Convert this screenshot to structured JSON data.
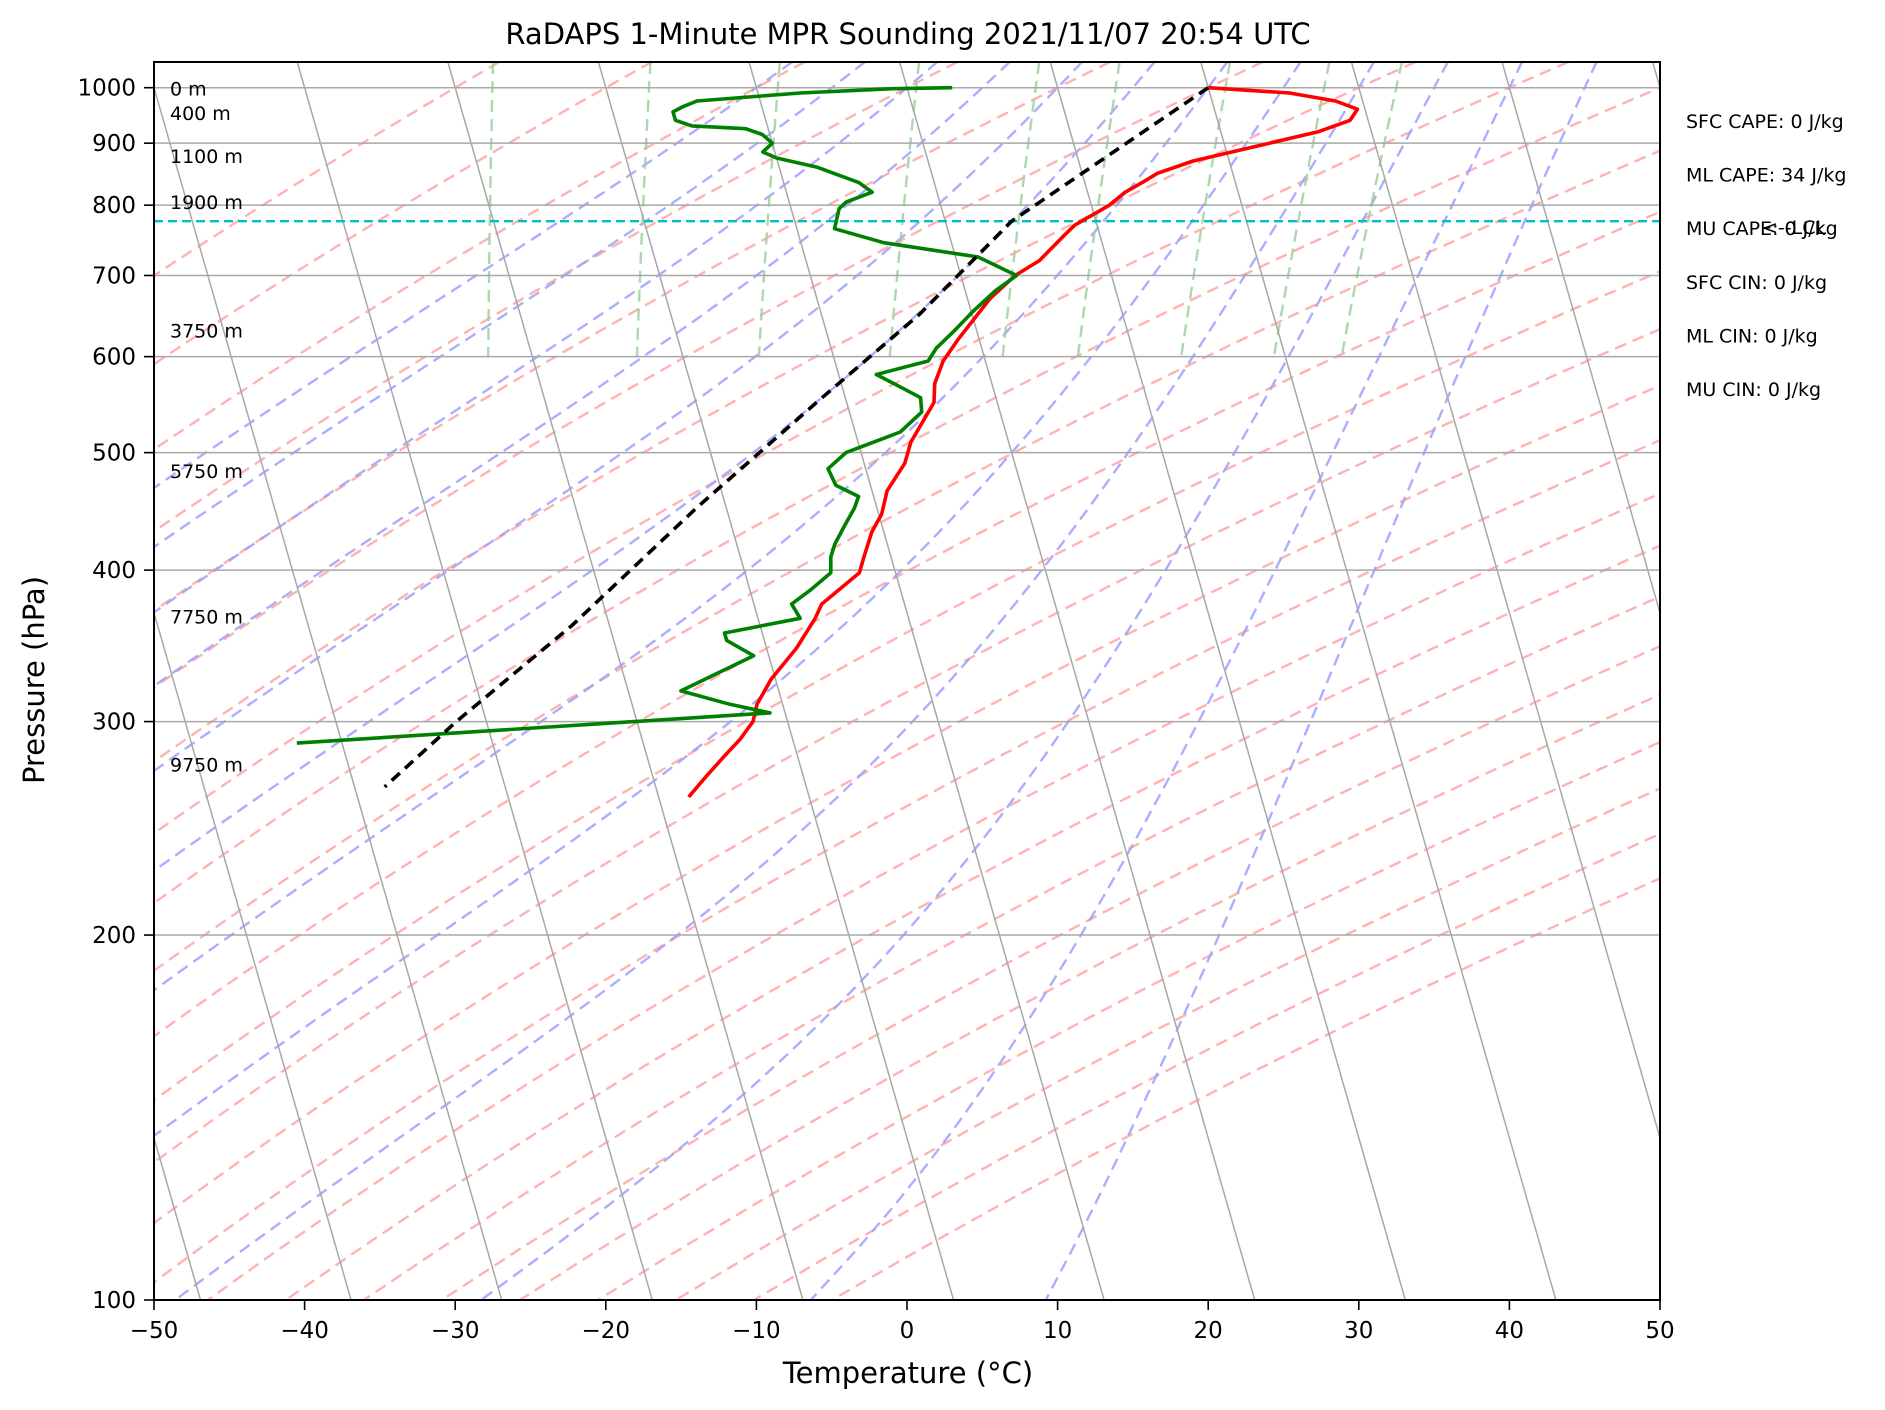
{
  "chart_data": {
    "type": "line",
    "title": "RaDAPS 1-Minute MPR Sounding 2021/11/07 20:54 UTC",
    "xlabel": "Temperature (°C)",
    "ylabel": "Pressure (hPa)",
    "xlim": [
      -50,
      50
    ],
    "ylim": [
      1050,
      100
    ],
    "y_scale": "log",
    "x_ticks": [
      -50,
      -40,
      -30,
      -20,
      -10,
      0,
      10,
      20,
      30,
      40,
      50
    ],
    "x_tick_labels": [
      "−50",
      "−40",
      "−30",
      "−20",
      "−10",
      "0",
      "10",
      "20",
      "30",
      "40",
      "50"
    ],
    "y_ticks": [
      100,
      200,
      300,
      400,
      500,
      600,
      700,
      800,
      900,
      1000
    ],
    "y_tick_labels": [
      "100",
      "200",
      "300",
      "400",
      "500",
      "600",
      "700",
      "800",
      "900",
      "1000"
    ],
    "grid": true,
    "skew": "skew-T log-p",
    "series": [
      {
        "color": "#ff0000",
        "points": [
          {
            "x": 20.0,
            "y": 1000
          },
          {
            "x": 25.3,
            "y": 990
          },
          {
            "x": 28.2,
            "y": 975
          },
          {
            "x": 29.5,
            "y": 960
          },
          {
            "x": 28.8,
            "y": 940
          },
          {
            "x": 26.5,
            "y": 920
          },
          {
            "x": 23.0,
            "y": 900
          },
          {
            "x": 17.6,
            "y": 870
          },
          {
            "x": 15.0,
            "y": 850
          },
          {
            "x": 13.8,
            "y": 835
          },
          {
            "x": 12.5,
            "y": 820
          },
          {
            "x": 11.2,
            "y": 800
          },
          {
            "x": 8.5,
            "y": 770
          },
          {
            "x": 7.6,
            "y": 755
          },
          {
            "x": 5.5,
            "y": 720
          },
          {
            "x": 3.6,
            "y": 700
          },
          {
            "x": 1.5,
            "y": 670
          },
          {
            "x": -1.4,
            "y": 620
          },
          {
            "x": -2.8,
            "y": 595
          },
          {
            "x": -3.8,
            "y": 570
          },
          {
            "x": -4.2,
            "y": 550
          },
          {
            "x": -6.5,
            "y": 510
          },
          {
            "x": -7.3,
            "y": 490
          },
          {
            "x": -9.0,
            "y": 465
          },
          {
            "x": -9.8,
            "y": 445
          },
          {
            "x": -10.8,
            "y": 430
          },
          {
            "x": -11.8,
            "y": 410
          },
          {
            "x": -12.4,
            "y": 398
          },
          {
            "x": -15.5,
            "y": 375
          },
          {
            "x": -16.2,
            "y": 365
          },
          {
            "x": -18.0,
            "y": 345
          },
          {
            "x": -20.3,
            "y": 325
          },
          {
            "x": -21.7,
            "y": 310
          },
          {
            "x": -22.3,
            "y": 300
          },
          {
            "x": -23.5,
            "y": 290
          },
          {
            "x": -25.0,
            "y": 280
          },
          {
            "x": -26.5,
            "y": 270
          },
          {
            "x": -28.0,
            "y": 260
          }
        ]
      },
      {
        "color": "#008000",
        "points": [
          {
            "x": 3.0,
            "y": 1000
          },
          {
            "x": -1.0,
            "y": 998
          },
          {
            "x": -7.2,
            "y": 990
          },
          {
            "x": -14.2,
            "y": 975
          },
          {
            "x": -15.2,
            "y": 965
          },
          {
            "x": -16.0,
            "y": 955
          },
          {
            "x": -16.0,
            "y": 940
          },
          {
            "x": -15.0,
            "y": 930
          },
          {
            "x": -11.5,
            "y": 925
          },
          {
            "x": -10.5,
            "y": 915
          },
          {
            "x": -10.0,
            "y": 900
          },
          {
            "x": -10.8,
            "y": 885
          },
          {
            "x": -10.0,
            "y": 875
          },
          {
            "x": -7.5,
            "y": 860
          },
          {
            "x": -6.5,
            "y": 850
          },
          {
            "x": -5.0,
            "y": 835
          },
          {
            "x": -4.3,
            "y": 820
          },
          {
            "x": -6.2,
            "y": 805
          },
          {
            "x": -6.8,
            "y": 795
          },
          {
            "x": -7.5,
            "y": 765
          },
          {
            "x": -4.5,
            "y": 745
          },
          {
            "x": 1.5,
            "y": 725
          },
          {
            "x": 3.7,
            "y": 700
          },
          {
            "x": 2.0,
            "y": 680
          },
          {
            "x": 0.2,
            "y": 655
          },
          {
            "x": -1.5,
            "y": 630
          },
          {
            "x": -3.0,
            "y": 610
          },
          {
            "x": -3.8,
            "y": 595
          },
          {
            "x": -7.5,
            "y": 580
          },
          {
            "x": -6.0,
            "y": 565
          },
          {
            "x": -5.0,
            "y": 555
          },
          {
            "x": -5.2,
            "y": 540
          },
          {
            "x": -7.0,
            "y": 520
          },
          {
            "x": -11.0,
            "y": 500
          },
          {
            "x": -12.5,
            "y": 485
          },
          {
            "x": -12.3,
            "y": 470
          },
          {
            "x": -11.0,
            "y": 460
          },
          {
            "x": -11.5,
            "y": 450
          },
          {
            "x": -12.5,
            "y": 435
          },
          {
            "x": -13.5,
            "y": 420
          },
          {
            "x": -14.0,
            "y": 410
          },
          {
            "x": -14.3,
            "y": 398
          },
          {
            "x": -16.0,
            "y": 385
          },
          {
            "x": -17.5,
            "y": 375
          },
          {
            "x": -17.2,
            "y": 365
          },
          {
            "x": -22.5,
            "y": 355
          },
          {
            "x": -22.5,
            "y": 350
          },
          {
            "x": -21.0,
            "y": 340
          },
          {
            "x": -26.5,
            "y": 318
          },
          {
            "x": -23.5,
            "y": 310
          },
          {
            "x": -21.0,
            "y": 305
          },
          {
            "x": -53.0,
            "y": 288
          }
        ]
      },
      {
        "color": "#000000",
        "dashed": true,
        "points": [
          {
            "x": 20.0,
            "y": 1000
          },
          {
            "x": 4.4,
            "y": 776
          },
          {
            "x": -3.5,
            "y": 650
          },
          {
            "x": -12.0,
            "y": 550
          },
          {
            "x": -22.0,
            "y": 450
          },
          {
            "x": -32.5,
            "y": 360
          },
          {
            "x": -42.0,
            "y": 300
          },
          {
            "x": -48.0,
            "y": 265
          }
        ]
      }
    ],
    "annotations": {
      "indices": [
        "SFC CAPE: 0 J/kg",
        "ML CAPE: 34 J/kg",
        "MU CAPE: 0 J/kg",
        "SFC CIN: 0 J/kg",
        "ML CIN: 0 J/kg",
        "MU CIN: 0 J/kg"
      ],
      "lcl": {
        "label": "<--LCL",
        "pressure": 776,
        "color": "#00bfbf"
      },
      "heights": [
        {
          "label": "0 m",
          "pressure": 1000
        },
        {
          "label": "400 m",
          "pressure": 955
        },
        {
          "label": "1100 m",
          "pressure": 880
        },
        {
          "label": "1900 m",
          "pressure": 806
        },
        {
          "label": "3750 m",
          "pressure": 632
        },
        {
          "label": "5750 m",
          "pressure": 484
        },
        {
          "label": "7750 m",
          "pressure": 367
        },
        {
          "label": "9750 m",
          "pressure": 277
        }
      ]
    },
    "reference_lines": {
      "isotherms": {
        "color": "#a8a8a8",
        "values": [
          -170,
          -160,
          -150,
          -140,
          -130,
          -120,
          -110,
          -100,
          -90,
          -80,
          -70,
          -60,
          -50,
          -40,
          -30,
          -20,
          -10,
          0,
          10,
          20,
          30,
          40,
          50
        ]
      },
      "dry_adiabats": {
        "color": "#ff9f9f",
        "theta_c": [
          -30,
          -20,
          -10,
          0,
          10,
          20,
          30,
          40,
          50,
          60,
          70,
          80,
          90,
          100,
          110,
          120,
          130,
          140,
          150,
          160,
          170,
          180,
          190,
          200
        ]
      },
      "moist_adiabats": {
        "color": "#9f9fff",
        "t_surface_c": [
          -10,
          -5,
          0,
          5,
          10,
          15,
          20,
          25,
          30,
          35,
          40,
          45
        ]
      },
      "mixing_ratio": {
        "color": "#9fd09f",
        "p_top": 600
      }
    }
  }
}
